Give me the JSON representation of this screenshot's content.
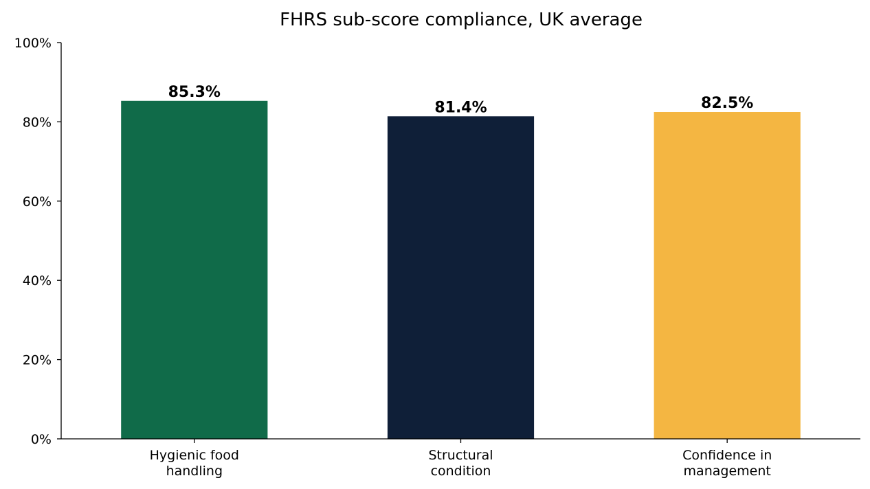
{
  "chart_data": {
    "type": "bar",
    "title": "FHRS sub-score compliance, UK average",
    "xlabel": "",
    "ylabel": "",
    "categories": [
      [
        "Hygienic food",
        "handling"
      ],
      [
        "Structural",
        "condition"
      ],
      [
        "Confidence in",
        "management"
      ]
    ],
    "values": [
      85.3,
      81.4,
      82.5
    ],
    "value_labels": [
      "85.3%",
      "81.4%",
      "82.5%"
    ],
    "colors": [
      "#106b49",
      "#0f1f38",
      "#f4b642"
    ],
    "ylim": [
      0,
      100
    ],
    "yticks": [
      0,
      20,
      40,
      60,
      80,
      100
    ],
    "ytick_labels": [
      "0%",
      "20%",
      "40%",
      "60%",
      "80%",
      "100%"
    ],
    "grid": false,
    "legend": "none"
  }
}
